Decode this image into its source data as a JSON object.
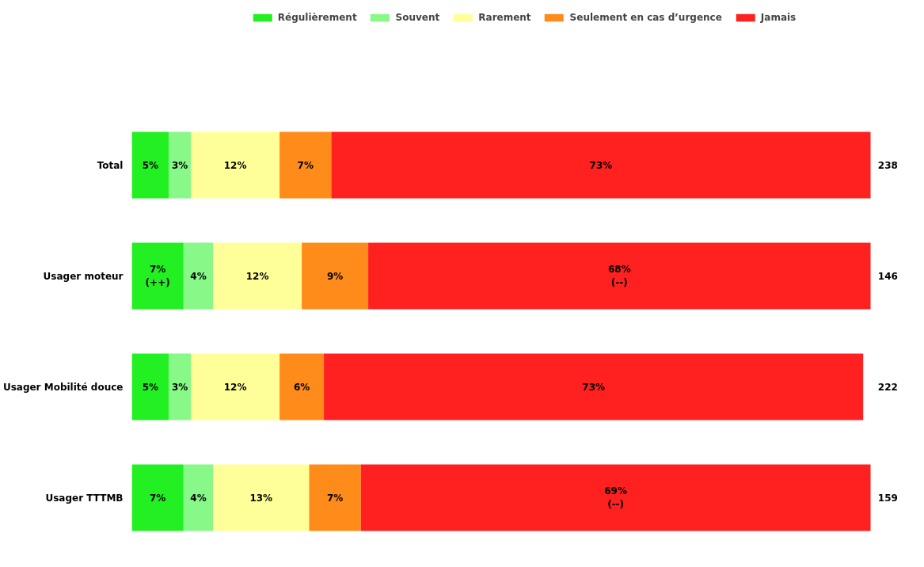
{
  "chart_data": {
    "type": "bar",
    "orientation": "horizontal",
    "stacked": true,
    "legend": "top",
    "grid": false,
    "categories": [
      "Total",
      "Usager moteur",
      "Usager Mobilité douce",
      "Usager TTTMB"
    ],
    "series": [
      {
        "name": "Régulièrement",
        "color": "#22f022",
        "values": [
          5,
          7,
          5,
          7
        ],
        "value_labels": [
          "5%",
          "7%\n(++)",
          "5%",
          "7%"
        ]
      },
      {
        "name": "Souvent",
        "color": "#88f888",
        "values": [
          3,
          4,
          3,
          4
        ],
        "value_labels": [
          "3%",
          "4%",
          "3%",
          "4%"
        ]
      },
      {
        "name": "Rarement",
        "color": "#ffff99",
        "values": [
          12,
          12,
          12,
          13
        ],
        "value_labels": [
          "12%",
          "12%",
          "12%",
          "13%"
        ]
      },
      {
        "name": "Seulement en cas d’urgence",
        "color": "#ff8c1a",
        "values": [
          7,
          9,
          6,
          7
        ],
        "value_labels": [
          "7%",
          "9%",
          "6%",
          "7%"
        ]
      },
      {
        "name": "Jamais",
        "color": "#ff2020",
        "values": [
          73,
          68,
          73,
          69
        ],
        "value_labels": [
          "73%",
          "68%\n(--)",
          "73%",
          "69%\n(--)"
        ]
      }
    ],
    "annotations": [
      "238",
      "146",
      "222",
      "159"
    ]
  }
}
